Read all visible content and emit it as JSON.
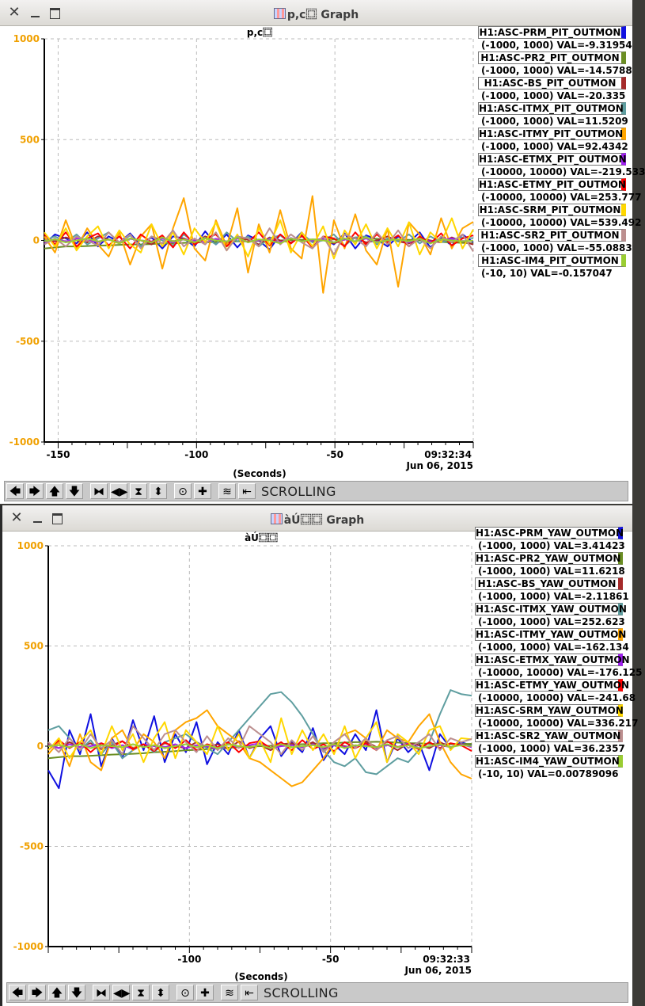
{
  "colors": {
    "PRM": "#1010e0",
    "PR2": "#6b8e23",
    "BS": "#a52a2a",
    "ITMX": "#5f9ea0",
    "ITMY": "#ffa500",
    "ETMX": "#a020f0",
    "ETMY": "#ff0000",
    "SRM": "#ffd700",
    "SR2": "#bc8f8f",
    "IM4": "#9acd32",
    "ytick": "#f0a000"
  },
  "graphs": [
    {
      "window_title": "p,c⿴ Graph",
      "plot_title": "p,c⿴",
      "time_label": "09:32:34",
      "date_label": "Jun 06, 2015",
      "xlabel": "(Seconds)",
      "status": "SCROLLING",
      "legend": [
        {
          "key": "PRM",
          "name": "H1:ASC-PRM_PIT_OUTMON",
          "range": "(-1000, 1000) VAL=-9.31954"
        },
        {
          "key": "PR2",
          "name": "H1:ASC-PR2_PIT_OUTMON",
          "range": "(-1000, 1000) VAL=-14.5788"
        },
        {
          "key": "BS",
          "name": "H1:ASC-BS_PIT_OUTMON",
          "range": "(-1000, 1000) VAL=-20.335"
        },
        {
          "key": "ITMX",
          "name": "H1:ASC-ITMX_PIT_OUTMON",
          "range": "(-1000, 1000) VAL=11.5209"
        },
        {
          "key": "ITMY",
          "name": "H1:ASC-ITMY_PIT_OUTMON",
          "range": "(-1000, 1000) VAL=92.4342"
        },
        {
          "key": "ETMX",
          "name": "H1:ASC-ETMX_PIT_OUTMON",
          "range": "(-10000, 10000) VAL=-219.533"
        },
        {
          "key": "ETMY",
          "name": "H1:ASC-ETMY_PIT_OUTMON",
          "range": "(-10000, 10000) VAL=253.777"
        },
        {
          "key": "SRM",
          "name": "H1:ASC-SRM_PIT_OUTMON",
          "range": "(-10000, 10000) VAL=539.492"
        },
        {
          "key": "SR2",
          "name": "H1:ASC-SR2_PIT_OUTMON",
          "range": "(-1000, 1000) VAL=-55.0883"
        },
        {
          "key": "IM4",
          "name": "H1:ASC-IM4_PIT_OUTMON",
          "range": "(-10, 10) VAL=-0.157047"
        }
      ]
    },
    {
      "window_title": "àÚ⿴⿴ Graph",
      "plot_title": "àÚ⿴⿴",
      "time_label": "09:32:33",
      "date_label": "Jun 06, 2015",
      "xlabel": "(Seconds)",
      "status": "SCROLLING",
      "legend": [
        {
          "key": "PRM",
          "name": "H1:ASC-PRM_YAW_OUTMON",
          "range": "(-1000, 1000) VAL=3.41423"
        },
        {
          "key": "PR2",
          "name": "H1:ASC-PR2_YAW_OUTMON",
          "range": "(-1000, 1000) VAL=11.6218"
        },
        {
          "key": "BS",
          "name": "H1:ASC-BS_YAW_OUTMON",
          "range": "(-1000, 1000) VAL=-2.11861"
        },
        {
          "key": "ITMX",
          "name": "H1:ASC-ITMX_YAW_OUTMON",
          "range": "(-1000, 1000) VAL=252.623"
        },
        {
          "key": "ITMY",
          "name": "H1:ASC-ITMY_YAW_OUTMON",
          "range": "(-1000, 1000) VAL=-162.134"
        },
        {
          "key": "ETMX",
          "name": "H1:ASC-ETMX_YAW_OUTMON",
          "range": "(-10000, 10000) VAL=-176.125"
        },
        {
          "key": "ETMY",
          "name": "H1:ASC-ETMY_YAW_OUTMON",
          "range": "(-10000, 10000) VAL=-241.68"
        },
        {
          "key": "SRM",
          "name": "H1:ASC-SRM_YAW_OUTMON",
          "range": "(-10000, 10000) VAL=336.217"
        },
        {
          "key": "SR2",
          "name": "H1:ASC-SR2_YAW_OUTMON",
          "range": "(-1000, 1000) VAL=36.2357"
        },
        {
          "key": "IM4",
          "name": "H1:ASC-IM4_YAW_OUTMON",
          "range": "(-10, 10) VAL=0.00789096"
        }
      ]
    }
  ],
  "chart_data": [
    {
      "type": "line",
      "ylim": [
        -1000,
        1000
      ],
      "yticks": [
        1000,
        500,
        0,
        -500,
        -1000
      ],
      "xticks": [
        -150,
        -100,
        -50
      ],
      "xlim": [
        -155,
        0
      ],
      "grid": true,
      "legend_position": "right",
      "series": [
        {
          "name": "H1:ASC-PRM_PIT_OUTMON",
          "values": [
            -20,
            30,
            10,
            -15,
            40,
            -30,
            20,
            -10,
            35,
            -25,
            15,
            -40,
            20,
            10,
            -30,
            45,
            -20,
            30,
            -35,
            25,
            0,
            -45,
            30,
            -15,
            40,
            -30,
            10,
            -20,
            35,
            -40,
            25,
            5,
            -30,
            20,
            -10,
            40,
            -35,
            15,
            -25,
            30,
            -9
          ]
        },
        {
          "name": "H1:ASC-PR2_PIT_OUTMON",
          "values": [
            -40,
            -35,
            -30,
            -30,
            -28,
            -25,
            -25,
            -22,
            -20,
            -20,
            -18,
            -15,
            -15,
            -12,
            -10,
            -10,
            -8,
            -5,
            -5,
            -5,
            -3,
            0,
            0,
            2,
            3,
            5,
            5,
            5,
            8,
            10,
            10,
            8,
            5,
            5,
            3,
            0,
            -5,
            -8,
            -10,
            -12,
            -15
          ]
        },
        {
          "name": "H1:ASC-BS_PIT_OUTMON",
          "values": [
            10,
            -5,
            15,
            0,
            -10,
            20,
            5,
            -15,
            10,
            0,
            -20,
            15,
            -5,
            10,
            -10,
            20,
            0,
            -15,
            10,
            5,
            -20,
            15,
            0,
            -10,
            20,
            -5,
            10,
            -15,
            5,
            15,
            -10,
            0,
            20,
            -5,
            -15,
            10,
            0,
            -10,
            15,
            -5,
            -20
          ]
        },
        {
          "name": "H1:ASC-ITMX_PIT_OUTMON",
          "values": [
            0,
            20,
            -10,
            30,
            -20,
            10,
            40,
            -15,
            25,
            -30,
            20,
            0,
            -25,
            30,
            -10,
            15,
            -20,
            40,
            -5,
            20,
            -30,
            10,
            25,
            -15,
            35,
            -10,
            0,
            30,
            -25,
            15,
            20,
            -20,
            10,
            -5,
            30,
            -15,
            20,
            -10,
            5,
            15,
            11
          ]
        },
        {
          "name": "H1:ASC-ITMY_PIT_OUTMON",
          "values": [
            20,
            -60,
            100,
            -40,
            60,
            -20,
            -80,
            40,
            -120,
            20,
            80,
            -140,
            60,
            210,
            -40,
            -100,
            100,
            -30,
            160,
            -160,
            80,
            -60,
            150,
            -40,
            -90,
            220,
            -260,
            100,
            -40,
            130,
            -50,
            -120,
            60,
            -230,
            90,
            30,
            -70,
            110,
            -40,
            60,
            92
          ]
        },
        {
          "name": "H1:ASC-ETMX_PIT_OUTMON",
          "values": [
            -10,
            5,
            -5,
            10,
            0,
            -8,
            5,
            -12,
            8,
            0,
            -5,
            10,
            -10,
            5,
            0,
            -10,
            8,
            -5,
            10,
            -8,
            0,
            5,
            -10,
            12,
            -5,
            0,
            8,
            -10,
            5,
            -5,
            10,
            -8,
            0,
            5,
            -10,
            8,
            -5,
            0,
            10,
            -5,
            -2
          ]
        },
        {
          "name": "H1:ASC-ETMY_PIT_OUTMON",
          "values": [
            30,
            -20,
            40,
            -30,
            10,
            35,
            -25,
            20,
            -40,
            30,
            -10,
            25,
            -35,
            40,
            -20,
            10,
            30,
            -30,
            20,
            -10,
            40,
            -25,
            30,
            -15,
            25,
            -35,
            20,
            10,
            -30,
            40,
            -20,
            30,
            -10,
            25,
            -30,
            20,
            -15,
            35,
            -25,
            10,
            25
          ]
        },
        {
          "name": "H1:ASC-SRM_PIT_OUTMON",
          "values": [
            40,
            -30,
            60,
            -50,
            20,
            70,
            -40,
            50,
            -20,
            -60,
            80,
            -30,
            40,
            -70,
            60,
            -10,
            90,
            -50,
            30,
            -80,
            60,
            -20,
            100,
            -60,
            40,
            -30,
            70,
            -90,
            50,
            -20,
            80,
            -40,
            60,
            -30,
            90,
            -70,
            40,
            -10,
            110,
            -40,
            54
          ]
        },
        {
          "name": "H1:ASC-SR2_PIT_OUTMON",
          "values": [
            -20,
            10,
            -30,
            20,
            0,
            -25,
            40,
            -10,
            30,
            -40,
            20,
            -15,
            50,
            -30,
            10,
            -20,
            40,
            -50,
            20,
            10,
            -30,
            60,
            -20,
            30,
            -10,
            -40,
            20,
            -70,
            30,
            10,
            -30,
            40,
            -20,
            50,
            -30,
            10,
            -40,
            20,
            -10,
            30,
            -55
          ]
        },
        {
          "name": "H1:ASC-IM4_PIT_OUTMON",
          "values": [
            -5,
            5,
            -10,
            0,
            10,
            -5,
            5,
            -15,
            10,
            0,
            -10,
            15,
            -5,
            5,
            -10,
            10,
            0,
            -5,
            15,
            -10,
            5,
            0,
            -15,
            10,
            -5,
            5,
            0,
            -10,
            10,
            -5,
            15,
            -10,
            0,
            5,
            -5,
            10,
            -15,
            5,
            0,
            -5,
            -1
          ]
        }
      ]
    },
    {
      "type": "line",
      "ylim": [
        -1000,
        1000
      ],
      "yticks": [
        1000,
        500,
        0,
        -500,
        -1000
      ],
      "xticks": [
        -100,
        -50
      ],
      "xlim": [
        -150,
        0
      ],
      "grid": true,
      "legend_position": "right",
      "series": [
        {
          "name": "H1:ASC-PRM_YAW_OUTMON",
          "values": [
            -120,
            -210,
            80,
            -40,
            160,
            -100,
            40,
            -60,
            130,
            -20,
            150,
            -80,
            60,
            -30,
            120,
            -90,
            20,
            -40,
            80,
            -60,
            40,
            100,
            -50,
            20,
            -30,
            90,
            -70,
            10,
            -40,
            60,
            -20,
            180,
            -80,
            40,
            -30,
            20,
            -120,
            60,
            -10,
            20,
            3
          ]
        },
        {
          "name": "H1:ASC-PR2_YAW_OUTMON",
          "values": [
            -60,
            -55,
            -50,
            -50,
            -48,
            -45,
            -42,
            -40,
            -38,
            -35,
            -30,
            -28,
            -25,
            -20,
            -18,
            -15,
            -10,
            -8,
            -5,
            -2,
            0,
            2,
            5,
            8,
            10,
            12,
            15,
            15,
            18,
            20,
            20,
            22,
            20,
            18,
            15,
            15,
            12,
            12,
            10,
            11,
            12
          ]
        },
        {
          "name": "H1:ASC-BS_YAW_OUTMON",
          "values": [
            10,
            -10,
            20,
            -5,
            15,
            -15,
            5,
            25,
            -10,
            10,
            -20,
            15,
            0,
            -10,
            20,
            -5,
            10,
            -15,
            25,
            -10,
            5,
            -20,
            10,
            15,
            -5,
            20,
            -15,
            10,
            0,
            -10,
            25,
            -5,
            10,
            -20,
            15,
            5,
            -10,
            20,
            -5,
            10,
            -2
          ]
        },
        {
          "name": "H1:ASC-ITMX_YAW_OUTMON",
          "values": [
            80,
            100,
            40,
            -20,
            30,
            -40,
            20,
            -60,
            -20,
            10,
            -30,
            20,
            40,
            60,
            20,
            -10,
            -40,
            20,
            80,
            140,
            200,
            260,
            270,
            220,
            150,
            60,
            -20,
            -80,
            -100,
            -60,
            -130,
            -140,
            -100,
            -60,
            -80,
            -20,
            20,
            160,
            280,
            260,
            252
          ]
        },
        {
          "name": "H1:ASC-ITMY_YAW_OUTMON",
          "values": [
            -40,
            20,
            -100,
            60,
            -80,
            -120,
            40,
            80,
            -20,
            60,
            20,
            -60,
            80,
            120,
            140,
            180,
            100,
            60,
            20,
            -60,
            -80,
            -120,
            -160,
            -200,
            -180,
            -120,
            -60,
            20,
            60,
            80,
            40,
            -20,
            80,
            40,
            20,
            100,
            160,
            20,
            -80,
            -140,
            -162
          ]
        },
        {
          "name": "H1:ASC-ETMX_YAW_OUTMON",
          "values": [
            5,
            -10,
            10,
            -5,
            0,
            15,
            -10,
            5,
            -15,
            10,
            0,
            -5,
            10,
            -10,
            5,
            0,
            -15,
            10,
            -5,
            5,
            15,
            -10,
            0,
            5,
            -5,
            10,
            -10,
            5,
            -5,
            0,
            10,
            -10,
            5,
            -5,
            15,
            -10,
            0,
            5,
            -5,
            10,
            -5
          ]
        },
        {
          "name": "H1:ASC-ETMY_YAW_OUTMON",
          "values": [
            -20,
            30,
            -10,
            20,
            -30,
            15,
            -5,
            25,
            -15,
            10,
            -25,
            20,
            -10,
            30,
            -20,
            10,
            -5,
            20,
            -30,
            15,
            25,
            -10,
            20,
            -20,
            30,
            -15,
            10,
            -25,
            20,
            -10,
            15,
            -20,
            25,
            -5,
            10,
            -15,
            20,
            -10,
            15,
            5,
            -24
          ]
        },
        {
          "name": "H1:ASC-SRM_YAW_OUTMON",
          "values": [
            -20,
            40,
            -60,
            20,
            80,
            -40,
            100,
            -20,
            60,
            -80,
            40,
            120,
            -60,
            80,
            20,
            -40,
            100,
            -20,
            60,
            -60,
            30,
            -80,
            140,
            -40,
            80,
            -20,
            60,
            -40,
            100,
            -60,
            40,
            120,
            -80,
            60,
            20,
            -40,
            80,
            100,
            -20,
            40,
            34
          ]
        },
        {
          "name": "H1:ASC-SR2_YAW_OUTMON",
          "values": [
            20,
            -30,
            40,
            -20,
            60,
            -10,
            30,
            -40,
            100,
            40,
            -20,
            60,
            80,
            20,
            -30,
            50,
            -20,
            40,
            -10,
            100,
            60,
            20,
            -40,
            30,
            -20,
            50,
            -30,
            20,
            60,
            -10,
            40,
            -20,
            30,
            50,
            -10,
            20,
            60,
            -20,
            40,
            20,
            36
          ]
        },
        {
          "name": "H1:ASC-IM4_YAW_OUTMON",
          "values": [
            0,
            5,
            -5,
            10,
            -10,
            5,
            0,
            -5,
            10,
            -5,
            5,
            -10,
            0,
            10,
            -5,
            5,
            -10,
            10,
            0,
            -5,
            5,
            -10,
            10,
            -5,
            0,
            5,
            -5,
            10,
            -10,
            5,
            0,
            -5,
            10,
            -5,
            5,
            -10,
            0,
            10,
            -5,
            5,
            1
          ]
        }
      ]
    }
  ]
}
